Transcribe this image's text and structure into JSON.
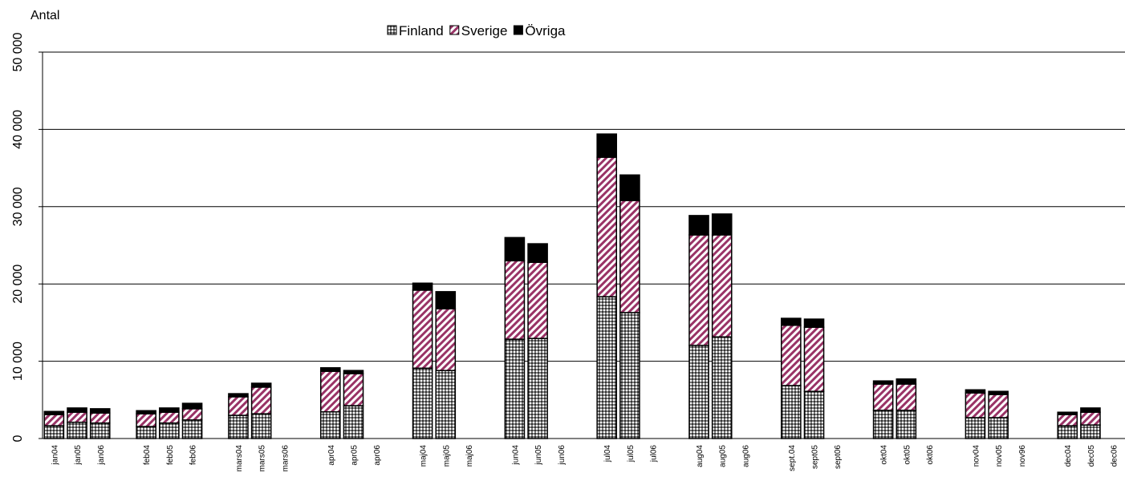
{
  "chart_data": {
    "type": "stacked_bar",
    "y_label": "Antal",
    "categories": [
      "jan04",
      "jan05",
      "jan06",
      null,
      "feb04",
      "feb05",
      "feb06",
      null,
      "mars04",
      "mars05",
      "mars06",
      null,
      "apr04",
      "apr05",
      "apr06",
      null,
      "maj04",
      "maj05",
      "maj06",
      null,
      "jun04",
      "jun05",
      "jun06",
      null,
      "jul04",
      "jul05",
      "jul06",
      null,
      "aug04",
      "aug05",
      "aug06",
      null,
      "sept.04",
      "sept05",
      "sept06",
      null,
      "okt04",
      "okt05",
      "okt06",
      null,
      "nov04",
      "nov05",
      "nov96",
      null,
      "dec04",
      "dec05",
      "dec06"
    ],
    "series": [
      {
        "name": "Finland",
        "color": "#808080",
        "pattern": "crosshatch",
        "values": [
          1650,
          2100,
          2000,
          null,
          1550,
          2000,
          2400,
          null,
          3000,
          3200,
          null,
          null,
          3450,
          4250,
          null,
          null,
          9100,
          8800,
          null,
          null,
          12850,
          12950,
          null,
          null,
          18350,
          16300,
          null,
          null,
          12050,
          13150,
          null,
          null,
          6850,
          6100,
          null,
          null,
          3650,
          3650,
          null,
          null,
          2700,
          2700,
          null,
          null,
          1650,
          1750,
          null
        ]
      },
      {
        "name": "Sverige",
        "color": "#993366",
        "pattern": "diagonal",
        "values": [
          1450,
          1300,
          1300,
          null,
          1650,
          1400,
          1450,
          null,
          2400,
          3450,
          null,
          null,
          5250,
          4150,
          null,
          null,
          10100,
          8000,
          null,
          null,
          10150,
          9850,
          null,
          null,
          18050,
          14500,
          null,
          null,
          14300,
          13200,
          null,
          null,
          7800,
          8300,
          null,
          null,
          3400,
          3400,
          null,
          null,
          3200,
          3000,
          null,
          null,
          1450,
          1650,
          null
        ]
      },
      {
        "name": "Övriga",
        "color": "#000000",
        "pattern": "solid",
        "values": [
          400,
          550,
          550,
          null,
          400,
          550,
          700,
          null,
          400,
          500,
          null,
          null,
          450,
          400,
          null,
          null,
          900,
          2200,
          null,
          null,
          3000,
          2400,
          null,
          null,
          3000,
          3300,
          null,
          null,
          2500,
          2700,
          null,
          null,
          900,
          1050,
          null,
          null,
          400,
          650,
          null,
          null,
          400,
          400,
          null,
          null,
          300,
          550,
          null
        ]
      }
    ],
    "ylim": [
      0,
      50000
    ],
    "yticks": [
      0,
      {
        "value": 10000,
        "label": "10 000"
      },
      {
        "value": 20000,
        "label": "20 000"
      },
      {
        "value": 30000,
        "label": "30 000"
      },
      {
        "value": 40000,
        "label": "40 000"
      },
      {
        "value": 50000,
        "label": "50 000"
      }
    ],
    "grid": true,
    "legend": "top"
  }
}
